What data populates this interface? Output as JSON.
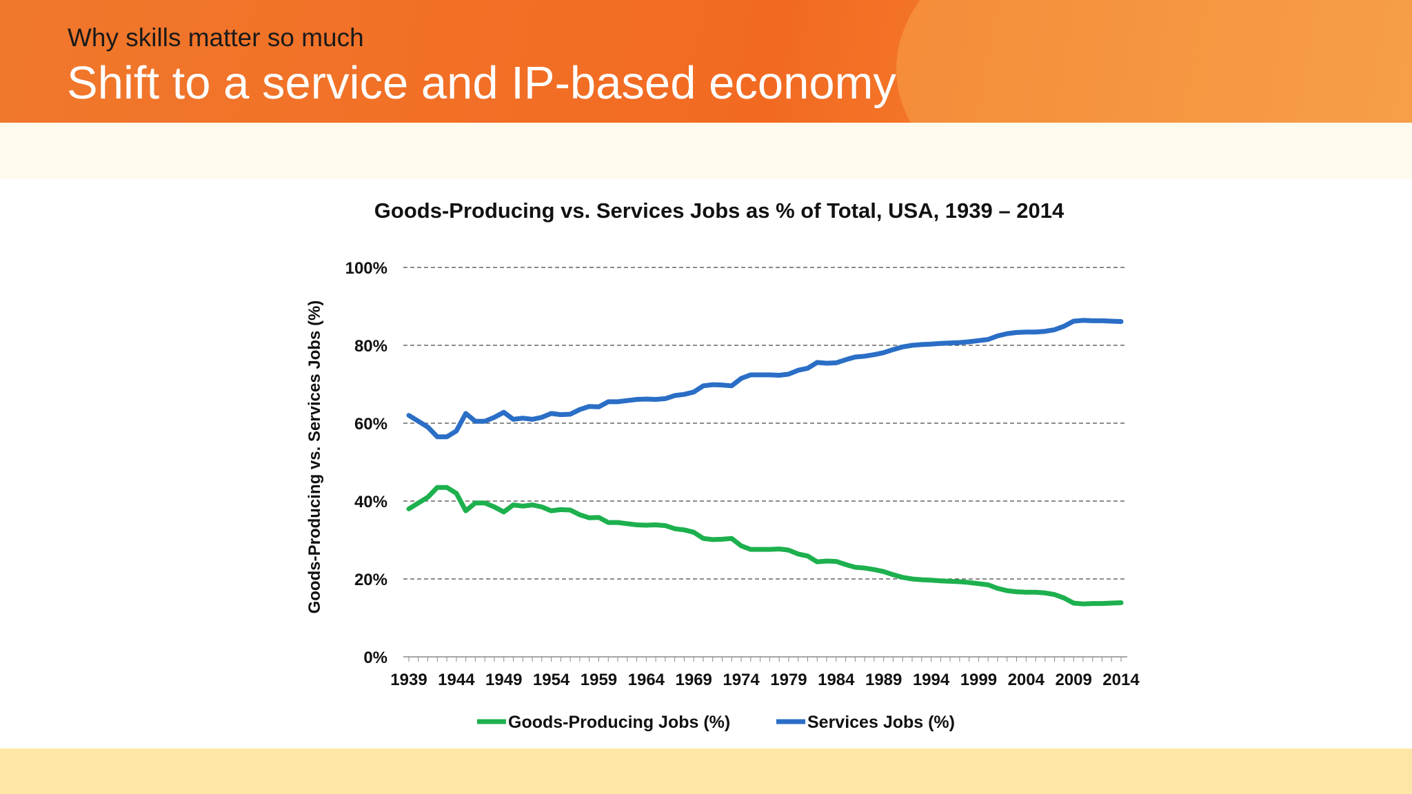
{
  "slide": {
    "subtitle": "Why skills matter so much",
    "title": "Shift to a service and IP-based economy"
  },
  "colors": {
    "header": "#f26a22",
    "goods": "#1db04e",
    "services": "#2a6ec6",
    "footer": "#fde6a6"
  },
  "chart_data": {
    "type": "line",
    "title": "Goods-Producing vs. Services Jobs as % of Total, USA, 1939 – 2014",
    "ylabel": "Goods-Producing vs. Services Jobs (%)",
    "xlabel": "",
    "ylim": [
      0,
      100
    ],
    "y_ticks": [
      "0%",
      "20%",
      "40%",
      "60%",
      "80%",
      "100%"
    ],
    "x_ticks": [
      "1939",
      "1944",
      "1949",
      "1954",
      "1959",
      "1964",
      "1969",
      "1974",
      "1979",
      "1984",
      "1989",
      "1994",
      "1999",
      "2004",
      "2009",
      "2014"
    ],
    "grid": "horizontal dashed",
    "legend": "bottom",
    "x": [
      1939,
      1940,
      1941,
      1942,
      1943,
      1944,
      1945,
      1946,
      1947,
      1948,
      1949,
      1950,
      1951,
      1952,
      1953,
      1954,
      1955,
      1956,
      1957,
      1958,
      1959,
      1960,
      1961,
      1962,
      1963,
      1964,
      1965,
      1966,
      1967,
      1968,
      1969,
      1970,
      1971,
      1972,
      1973,
      1974,
      1975,
      1976,
      1977,
      1978,
      1979,
      1980,
      1981,
      1982,
      1983,
      1984,
      1985,
      1986,
      1987,
      1988,
      1989,
      1990,
      1991,
      1992,
      1993,
      1994,
      1995,
      1996,
      1997,
      1998,
      1999,
      2000,
      2001,
      2002,
      2003,
      2004,
      2005,
      2006,
      2007,
      2008,
      2009,
      2010,
      2011,
      2012,
      2013,
      2014
    ],
    "series": [
      {
        "name": "Goods-Producing Jobs (%)",
        "color": "#1db04e",
        "values": [
          38,
          39.5,
          41,
          43.5,
          43.5,
          42,
          37.5,
          39.5,
          39.5,
          38.5,
          37.2,
          39,
          38.7,
          39,
          38.5,
          37.5,
          37.8,
          37.7,
          36.5,
          35.7,
          35.8,
          34.5,
          34.5,
          34.2,
          33.9,
          33.8,
          33.9,
          33.7,
          32.9,
          32.6,
          32,
          30.4,
          30.1,
          30.2,
          30.4,
          28.5,
          27.6,
          27.6,
          27.6,
          27.7,
          27.4,
          26.4,
          25.9,
          24.4,
          24.6,
          24.5,
          23.7,
          23,
          22.8,
          22.4,
          21.9,
          21.1,
          20.4,
          20,
          19.8,
          19.7,
          19.5,
          19.4,
          19.3,
          19.1,
          18.8,
          18.5,
          17.6,
          17,
          16.7,
          16.6,
          16.6,
          16.4,
          16,
          15.1,
          13.8,
          13.6,
          13.7,
          13.7,
          13.8,
          13.9
        ]
      },
      {
        "name": "Services Jobs (%)",
        "color": "#2a6ec6",
        "values": [
          62,
          60.5,
          59,
          56.5,
          56.5,
          58,
          62.5,
          60.5,
          60.5,
          61.5,
          62.8,
          61,
          61.3,
          61,
          61.5,
          62.5,
          62.2,
          62.3,
          63.5,
          64.3,
          64.2,
          65.5,
          65.5,
          65.8,
          66.1,
          66.2,
          66.1,
          66.3,
          67.1,
          67.4,
          68,
          69.6,
          69.9,
          69.8,
          69.6,
          71.5,
          72.4,
          72.4,
          72.4,
          72.3,
          72.6,
          73.6,
          74.1,
          75.6,
          75.4,
          75.5,
          76.3,
          77,
          77.2,
          77.6,
          78.1,
          78.9,
          79.6,
          80,
          80.2,
          80.3,
          80.5,
          80.6,
          80.7,
          80.9,
          81.2,
          81.5,
          82.4,
          83,
          83.3,
          83.4,
          83.4,
          83.6,
          84,
          84.9,
          86.2,
          86.4,
          86.3,
          86.3,
          86.2,
          86.1
        ]
      }
    ]
  }
}
